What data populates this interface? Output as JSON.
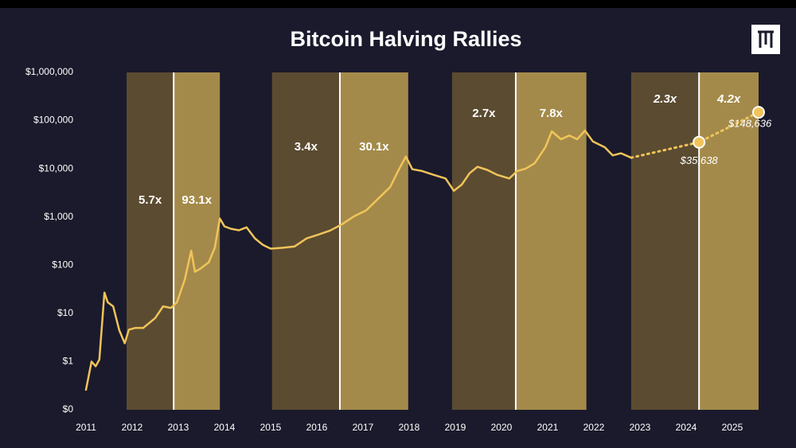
{
  "chart_data": {
    "type": "line",
    "title": "Bitcoin Halving Rallies",
    "log_scale": true,
    "xlim": [
      2011,
      2025.57
    ],
    "xticks": [
      2011,
      2012,
      2013,
      2014,
      2015,
      2016,
      2017,
      2018,
      2019,
      2020,
      2021,
      2022,
      2023,
      2024,
      2025
    ],
    "ylim": [
      0.1,
      1000000
    ],
    "yticks": [
      {
        "value": 0.1,
        "label": "$0"
      },
      {
        "value": 1,
        "label": "$1"
      },
      {
        "value": 10,
        "label": "$10"
      },
      {
        "value": 100,
        "label": "$100"
      },
      {
        "value": 1000,
        "label": "$1,000"
      },
      {
        "value": 10000,
        "label": "$10,000"
      },
      {
        "value": 100000,
        "label": "$100,000"
      },
      {
        "value": 1000000,
        "label": "$1,000,000"
      }
    ],
    "bands": [
      {
        "start": 2011.88,
        "end": 2012.9,
        "label": "5.7x",
        "color": "#5b4b31"
      },
      {
        "start": 2012.9,
        "end": 2013.9,
        "label": "93.1x",
        "color": "#a48a4a"
      },
      {
        "start": 2015.03,
        "end": 2016.5,
        "label": "3.4x",
        "color": "#5b4b31"
      },
      {
        "start": 2016.5,
        "end": 2017.98,
        "label": "30.1x",
        "color": "#a48a4a"
      },
      {
        "start": 2018.93,
        "end": 2020.31,
        "label": "2.7x",
        "color": "#5b4b31"
      },
      {
        "start": 2020.31,
        "end": 2021.84,
        "label": "7.8x",
        "color": "#a48a4a"
      },
      {
        "start": 2022.81,
        "end": 2024.28,
        "label": "2.3x",
        "color": "#5b4b31"
      },
      {
        "start": 2024.28,
        "end": 2025.57,
        "label": "4.2x",
        "color": "#a48a4a"
      }
    ],
    "series": [
      {
        "color": "#f0c45a",
        "x": [
          2011.0,
          2011.12,
          2011.21,
          2011.29,
          2011.4,
          2011.47,
          2011.59,
          2011.72,
          2011.84,
          2011.93,
          2012.07,
          2012.24,
          2012.5,
          2012.67,
          2012.84,
          2012.97,
          2013.14,
          2013.28,
          2013.36,
          2013.48,
          2013.66,
          2013.79,
          2013.9,
          2014.0,
          2014.14,
          2014.31,
          2014.48,
          2014.66,
          2014.83,
          2015.0,
          2015.26,
          2015.52,
          2015.78,
          2016.03,
          2016.29,
          2016.55,
          2016.81,
          2017.07,
          2017.33,
          2017.59,
          2017.76,
          2017.93,
          2018.07,
          2018.28,
          2018.53,
          2018.79,
          2018.97,
          2019.14,
          2019.31,
          2019.48,
          2019.69,
          2019.91,
          2020.17,
          2020.34,
          2020.52,
          2020.72,
          2020.95,
          2021.09,
          2021.29,
          2021.47,
          2021.64,
          2021.81,
          2021.98,
          2022.24,
          2022.41,
          2022.59,
          2022.81
        ],
        "values": [
          0.26,
          1,
          0.8,
          1.1,
          27,
          17,
          14,
          4.5,
          2.4,
          4.6,
          5,
          5,
          8,
          14,
          13,
          17,
          50,
          200,
          73,
          85,
          115,
          230,
          930,
          640,
          570,
          530,
          610,
          360,
          265,
          220,
          230,
          245,
          360,
          430,
          525,
          710,
          1040,
          1370,
          2400,
          4200,
          9000,
          18000,
          9800,
          9000,
          7500,
          6300,
          3500,
          4700,
          8100,
          11000,
          9500,
          7500,
          6300,
          9000,
          10000,
          13000,
          28000,
          60000,
          41000,
          49000,
          41000,
          62000,
          37000,
          28000,
          19000,
          21000,
          17000
        ]
      },
      {
        "color": "#f0c45a",
        "dashed": true,
        "x": [
          2022.81,
          2024.28,
          2025.57
        ],
        "values": [
          17000,
          35638,
          148636
        ],
        "value_labels": [
          null,
          "$35,638",
          "$148,636"
        ]
      }
    ]
  }
}
